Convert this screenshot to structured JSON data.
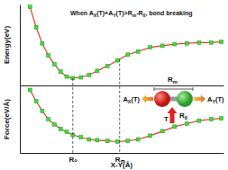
{
  "chart_data": [
    {
      "type": "line",
      "y_label": "Energy(eV)",
      "x": [
        0.5,
        0.8,
        1.1,
        1.4,
        1.7,
        2.0,
        2.3,
        2.6,
        3.0,
        3.4,
        3.8,
        4.3,
        4.8,
        5.3,
        5.8,
        6.4,
        7.0,
        7.6,
        8.2,
        8.8,
        9.4,
        9.9
      ],
      "xlim": [
        0,
        10
      ],
      "ylim": [
        0,
        10
      ],
      "tick_labels": false,
      "series": [
        {
          "color": "#e53a2a",
          "marker": "square",
          "values": [
            9.7,
            7.2,
            5.2,
            3.7,
            2.6,
            1.7,
            1.1,
            0.9,
            1.0,
            1.3,
            1.8,
            2.4,
            3.1,
            3.8,
            4.2,
            4.7,
            4.9,
            5.1,
            5.2,
            5.3,
            5.3,
            5.4
          ]
        }
      ],
      "annotation": [
        "When A",
        "X",
        "(T)+A",
        "Y",
        "(T)>R",
        "m",
        "-R",
        "0",
        ", bond breaking"
      ]
    },
    {
      "type": "line",
      "y_label": "Force(eV/Å)",
      "x_label": "X-Y(Å)",
      "x": [
        0.5,
        0.8,
        1.1,
        1.4,
        1.7,
        2.0,
        2.3,
        2.6,
        3.0,
        3.4,
        3.8,
        4.3,
        4.8,
        5.3,
        5.8,
        6.4,
        7.0,
        7.6,
        8.2,
        8.8,
        9.4,
        9.9
      ],
      "xlim": [
        0,
        10
      ],
      "ylim": [
        -9,
        0
      ],
      "xticks": [
        {
          "value": 2.6,
          "label": "R₀"
        },
        {
          "value": 4.9,
          "label": "Rₘ"
        }
      ],
      "tick_labels": "x",
      "grid": true,
      "series": [
        {
          "color": "#e53a2a",
          "marker": "square",
          "values": [
            -0.6,
            -2.1,
            -3.4,
            -4.5,
            -5.2,
            -5.8,
            -6.2,
            -6.6,
            -6.9,
            -7.2,
            -7.3,
            -7.4,
            -7.5,
            -7.4,
            -7.2,
            -6.7,
            -6.1,
            -5.5,
            -5.1,
            -4.7,
            -4.5,
            -4.4
          ]
        }
      ]
    }
  ],
  "diagram": {
    "bond_length_max": [
      "R",
      "m"
    ],
    "force_x": [
      "A",
      "X",
      "(T)"
    ],
    "force_y": [
      "A",
      "Y",
      "(T)"
    ],
    "temperature": "T",
    "bond_length": [
      "R",
      "0"
    ]
  }
}
